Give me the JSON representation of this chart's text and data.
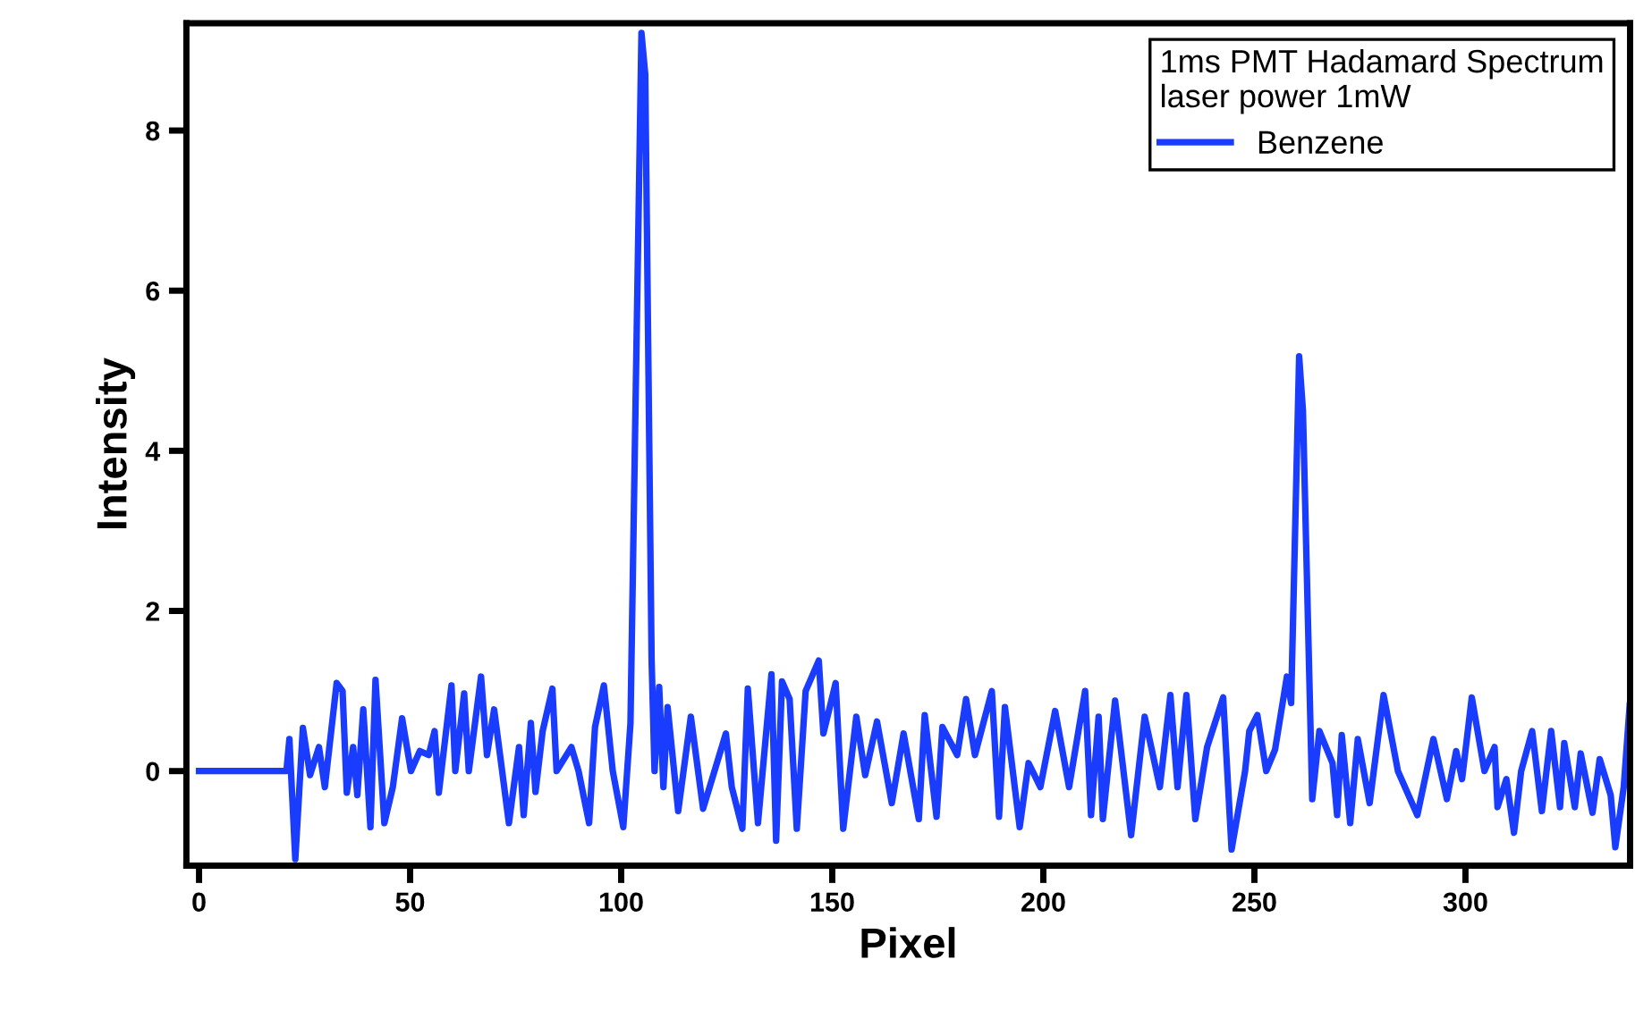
{
  "chart_data": {
    "type": "line",
    "xlabel": "Pixel",
    "ylabel": "Intensity",
    "legend_title": "1ms PMT Hadamard Spectrum\nlaser power 1mW",
    "legend": "top right",
    "xlim": [
      -3,
      339
    ],
    "ylim": [
      -1.18,
      9.34
    ],
    "xticks": [
      0,
      50,
      100,
      150,
      200,
      250,
      300
    ],
    "yticks": [
      0,
      2,
      4,
      6,
      8
    ],
    "grid": false,
    "marker": "none",
    "line_style": "solid",
    "series": [
      {
        "name": "Benzene",
        "color": "#1a3cff",
        "x": [
          0,
          20.7,
          21.4,
          22.8,
          24.6,
          26.3,
          28.4,
          29.8,
          32.6,
          34,
          35,
          36.5,
          37.5,
          38.9,
          40.6,
          41.8,
          43.9,
          45.9,
          48.1,
          50.2,
          52.3,
          54.4,
          55.8,
          56.8,
          59.8,
          60.7,
          62.8,
          63.9,
          66.8,
          68.2,
          69.9,
          73.4,
          75.8,
          76.9,
          78.6,
          79.7,
          81.4,
          83.7,
          84.7,
          88.2,
          89.9,
          92.4,
          93.8,
          95.9,
          98,
          100.5,
          102.2,
          104.8,
          105.7,
          107.2,
          107.9,
          109,
          110,
          111,
          113.5,
          116.5,
          119.4,
          124.8,
          126.2,
          128.7,
          130,
          132.4,
          135.6,
          136.7,
          138.1,
          139.9,
          141.6,
          143.7,
          146.8,
          147.9,
          150.8,
          152.6,
          155.7,
          157.8,
          160.6,
          164.1,
          166.9,
          170.5,
          171.9,
          174.7,
          176.1,
          179.6,
          181.7,
          183.8,
          187.8,
          189.5,
          190.9,
          194.4,
          196.5,
          199.3,
          202.8,
          206.1,
          209.9,
          211.3,
          213.1,
          214.1,
          217,
          220.8,
          224,
          227.6,
          230.1,
          231.8,
          233.9,
          236,
          238.8,
          242.6,
          244.6,
          247.8,
          248.8,
          250.7,
          252.8,
          254.9,
          257.7,
          258.7,
          260.6,
          261.5,
          263.7,
          265.4,
          268.5,
          269.6,
          270.7,
          272.7,
          274.5,
          277.3,
          280.6,
          284,
          288.6,
          292.4,
          295.6,
          297.8,
          299.2,
          301.5,
          304.5,
          306.9,
          307.6,
          309.7,
          311.5,
          313.2,
          315.8,
          318.1,
          320.3,
          322.4,
          323.4,
          325.9,
          327.3,
          330.1,
          331.8,
          334.4,
          335.5,
          337.5,
          338.9
        ],
        "values": [
          0,
          0,
          0.4,
          -1.1,
          0.54,
          -0.05,
          0.3,
          -0.2,
          1.1,
          1.0,
          -0.27,
          0.3,
          -0.3,
          0.77,
          -0.7,
          1.14,
          -0.65,
          -0.2,
          0.66,
          0,
          0.25,
          0.2,
          0.5,
          -0.27,
          1.07,
          0,
          0.97,
          0,
          1.18,
          0.2,
          0.77,
          -0.65,
          0.3,
          -0.55,
          0.6,
          -0.26,
          0.5,
          1.03,
          0,
          0.3,
          0,
          -0.65,
          0.55,
          1.07,
          0,
          -0.7,
          0.6,
          9.22,
          8.7,
          1.4,
          0,
          1.05,
          -0.2,
          0.8,
          -0.5,
          0.68,
          -0.47,
          0.47,
          -0.2,
          -0.72,
          1.03,
          -0.65,
          1.21,
          -0.87,
          1.12,
          0.9,
          -0.72,
          1.0,
          1.38,
          0.47,
          1.1,
          -0.72,
          0.68,
          -0.05,
          0.62,
          -0.4,
          0.47,
          -0.6,
          0.7,
          -0.57,
          0.55,
          0.2,
          0.9,
          0.2,
          1.0,
          -0.57,
          0.8,
          -0.7,
          0.1,
          -0.2,
          0.75,
          -0.2,
          1.0,
          -0.55,
          0.68,
          -0.6,
          0.88,
          -0.8,
          0.68,
          -0.2,
          0.95,
          -0.2,
          0.95,
          -0.6,
          0.3,
          0.92,
          -0.98,
          0,
          0.5,
          0.7,
          0,
          0.27,
          1.18,
          0.85,
          5.18,
          4.5,
          -0.35,
          0.5,
          0.1,
          -0.55,
          0.45,
          -0.65,
          0.4,
          -0.4,
          0.95,
          0,
          -0.55,
          0.4,
          -0.35,
          0.25,
          -0.1,
          0.92,
          0,
          0.3,
          -0.45,
          -0.1,
          -0.77,
          0,
          0.5,
          -0.5,
          0.5,
          -0.45,
          0.35,
          -0.45,
          0.22,
          -0.52,
          0.15,
          -0.3,
          -0.95,
          -0.2,
          0.82
        ]
      }
    ]
  }
}
